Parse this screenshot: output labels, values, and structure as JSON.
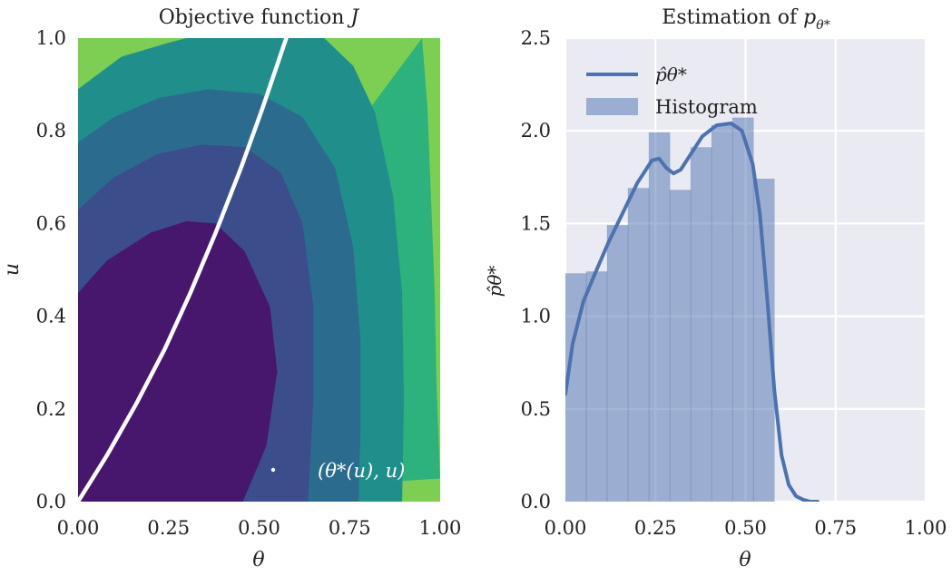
{
  "chart_data": [
    {
      "type": "contour",
      "title_text": "Objective function ",
      "title_symbol": "J",
      "xlabel": "θ",
      "ylabel": "u",
      "xlim": [
        0,
        1
      ],
      "ylim": [
        0,
        1
      ],
      "x_tick_labels": [
        "0.00",
        "0.25",
        "0.50",
        "0.75",
        "1.00"
      ],
      "y_tick_labels": [
        "0.0",
        "0.2",
        "0.4",
        "0.6",
        "0.8",
        "1.0"
      ],
      "grid": false,
      "colormap": "viridis",
      "level_colors": [
        "#46176d",
        "#3b4d8a",
        "#2b6c8e",
        "#208f8c",
        "#2db27d",
        "#7ccf52"
      ],
      "contour_boundaries": [
        [
          [
            0.0,
            0.45
          ],
          [
            0.08,
            0.52
          ],
          [
            0.2,
            0.58
          ],
          [
            0.3,
            0.605
          ],
          [
            0.38,
            0.6
          ],
          [
            0.46,
            0.54
          ],
          [
            0.53,
            0.42
          ],
          [
            0.55,
            0.28
          ],
          [
            0.52,
            0.12
          ],
          [
            0.455,
            0.0
          ]
        ],
        [
          [
            0.0,
            0.63
          ],
          [
            0.1,
            0.7
          ],
          [
            0.22,
            0.75
          ],
          [
            0.34,
            0.77
          ],
          [
            0.46,
            0.765
          ],
          [
            0.56,
            0.71
          ],
          [
            0.62,
            0.6
          ],
          [
            0.65,
            0.42
          ],
          [
            0.65,
            0.22
          ],
          [
            0.635,
            0.0
          ]
        ],
        [
          [
            0.0,
            0.775
          ],
          [
            0.1,
            0.83
          ],
          [
            0.22,
            0.87
          ],
          [
            0.36,
            0.89
          ],
          [
            0.5,
            0.88
          ],
          [
            0.62,
            0.83
          ],
          [
            0.71,
            0.72
          ],
          [
            0.76,
            0.55
          ],
          [
            0.78,
            0.35
          ],
          [
            0.78,
            0.15
          ],
          [
            0.775,
            0.0
          ]
        ],
        [
          [
            0.0,
            0.89
          ],
          [
            0.12,
            0.96
          ],
          [
            0.25,
            0.99
          ],
          [
            0.3,
            1.0
          ],
          [
            0.68,
            1.0
          ],
          [
            0.76,
            0.94
          ],
          [
            0.82,
            0.84
          ],
          [
            0.87,
            0.66
          ],
          [
            0.895,
            0.45
          ],
          [
            0.9,
            0.22
          ],
          [
            0.895,
            0.0
          ]
        ],
        [
          [
            0.95,
            1.0
          ],
          [
            0.965,
            0.85
          ],
          [
            0.975,
            0.65
          ],
          [
            0.985,
            0.45
          ],
          [
            0.99,
            0.25
          ],
          [
            1.0,
            0.05
          ]
        ]
      ],
      "curve_series": {
        "name": "(θ*(u), u)",
        "color": "#ffffff",
        "points": [
          [
            0.0,
            0.0
          ],
          [
            0.08,
            0.1
          ],
          [
            0.16,
            0.21
          ],
          [
            0.24,
            0.33
          ],
          [
            0.31,
            0.45
          ],
          [
            0.38,
            0.58
          ],
          [
            0.45,
            0.72
          ],
          [
            0.51,
            0.85
          ],
          [
            0.575,
            1.0
          ]
        ]
      },
      "legend": {
        "position": "lower-right",
        "label": "(θ*(u), u)",
        "text_color": "#ffffff"
      }
    },
    {
      "type": "histogram+kde",
      "title_text": "Estimation of ",
      "title_symbol": "p",
      "title_subscript": "θ*",
      "xlabel": "θ",
      "ylabel": "p̂θ*",
      "xlim": [
        0,
        1
      ],
      "ylim": [
        0,
        2.5
      ],
      "x_tick_labels": [
        "0.00",
        "0.25",
        "0.50",
        "0.75",
        "1.00"
      ],
      "y_tick_labels": [
        "0.0",
        "0.5",
        "1.0",
        "1.5",
        "2.0",
        "2.5"
      ],
      "grid": true,
      "background": "#eaeaf2",
      "bar_color": "#4c72b0",
      "bar_opacity": 0.5,
      "line_color": "#4c72b0",
      "histogram": {
        "bin_edges": [
          0.0,
          0.058,
          0.116,
          0.174,
          0.232,
          0.29,
          0.348,
          0.406,
          0.464,
          0.522,
          0.58
        ],
        "values": [
          1.23,
          1.24,
          1.49,
          1.69,
          1.99,
          1.68,
          1.91,
          2.03,
          2.07,
          1.74
        ]
      },
      "kde": {
        "x": [
          0.0,
          0.02,
          0.05,
          0.08,
          0.12,
          0.16,
          0.2,
          0.24,
          0.26,
          0.28,
          0.3,
          0.32,
          0.35,
          0.38,
          0.42,
          0.46,
          0.49,
          0.52,
          0.54,
          0.56,
          0.58,
          0.6,
          0.62,
          0.64,
          0.66,
          0.68,
          0.7
        ],
        "y": [
          0.58,
          0.85,
          1.08,
          1.22,
          1.4,
          1.56,
          1.72,
          1.84,
          1.85,
          1.8,
          1.77,
          1.79,
          1.88,
          1.97,
          2.03,
          2.04,
          2.0,
          1.82,
          1.55,
          1.1,
          0.6,
          0.25,
          0.09,
          0.03,
          0.01,
          0.0,
          0.0
        ]
      },
      "legend": {
        "position": "upper-left",
        "items": [
          {
            "type": "line",
            "label": "p̂θ*"
          },
          {
            "type": "patch",
            "label": "Histogram"
          }
        ]
      }
    }
  ]
}
